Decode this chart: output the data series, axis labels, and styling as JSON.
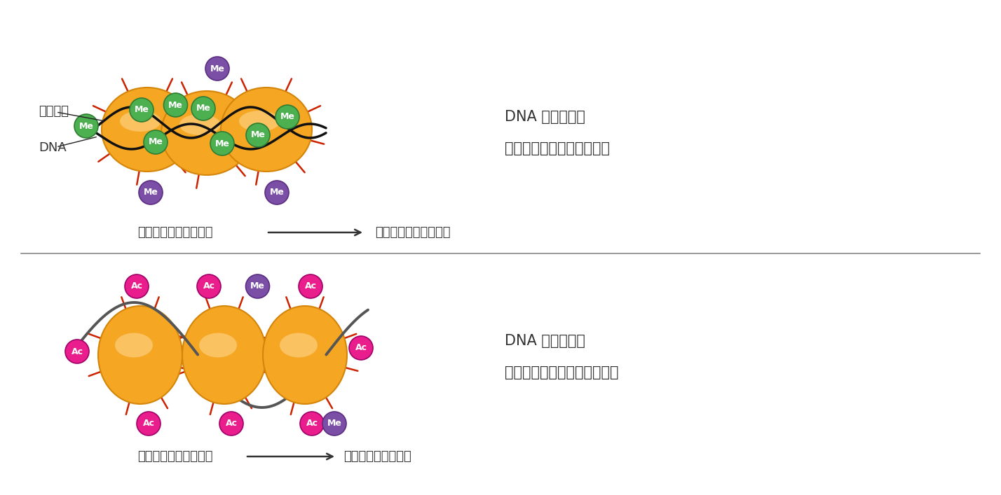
{
  "bg_color": "#ffffff",
  "top_panel": {
    "histone_color": "#F5A623",
    "histone_grad_inner": "#FFDEA0",
    "histone_edge": "#D4850A",
    "dna_color": "#111111",
    "me_green_fill": "#4CAF50",
    "me_green_edge": "#2E7D32",
    "me_purple_fill": "#7B4FA6",
    "me_purple_edge": "#5A2D82",
    "red_line_color": "#CC2200",
    "label_histone": "ヒストン",
    "label_dna": "DNA",
    "title1": "DNA 高メチル化",
    "title2": "抑制型ヒストン修飾の増加",
    "bottom_left": "クロマチン構造の凝集",
    "arrow_label": "遺伝子発現の活性抑制"
  },
  "bottom_panel": {
    "histone_color": "#F5A623",
    "histone_grad_inner": "#FFDEA0",
    "histone_edge": "#D4850A",
    "dna_color": "#555555",
    "ac_pink_fill": "#E91E8C",
    "ac_pink_edge": "#A0006A",
    "me_purple_fill": "#7B4FA6",
    "me_purple_edge": "#5A2D82",
    "red_line_color": "#CC2200",
    "title1": "DNA 低メチル化",
    "title2": "活性化型ヒストン修飾の増加",
    "bottom_left": "クロマチン構造の緩み",
    "arrow_label": "遺伝子発現の活性化"
  },
  "divider_color": "#888888",
  "arrow_color": "#333333",
  "text_color": "#333333",
  "font_size_label": 13,
  "font_size_title": 15,
  "font_size_badge": 9,
  "fig_width": 14.28,
  "fig_height": 7.07,
  "dpi": 100
}
